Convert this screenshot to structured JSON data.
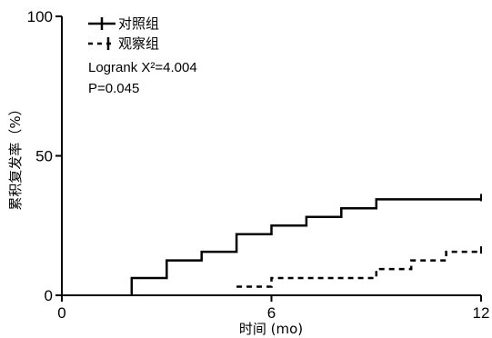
{
  "chart_data": {
    "type": "line",
    "subtype": "kaplan-meier-step",
    "xlabel": "时间 (mo)",
    "ylabel": "累积复发率（%）",
    "xlim": [
      0,
      12
    ],
    "ylim": [
      0,
      100
    ],
    "x_ticks": [
      "0",
      "6",
      "12"
    ],
    "y_ticks": [
      "0",
      "50",
      "100"
    ],
    "grid": false,
    "legend_position": "top-left",
    "annotations": [
      "Logrank X²=4.004",
      "P=0.045"
    ],
    "series": [
      {
        "name": "对照组",
        "line_style": "solid",
        "points": [
          {
            "x": 2,
            "y": 0
          },
          {
            "x": 2,
            "y": 6.2
          },
          {
            "x": 3,
            "y": 6.2
          },
          {
            "x": 3,
            "y": 12.5
          },
          {
            "x": 4,
            "y": 12.5
          },
          {
            "x": 4,
            "y": 15.6
          },
          {
            "x": 5,
            "y": 15.6
          },
          {
            "x": 5,
            "y": 21.9
          },
          {
            "x": 6,
            "y": 21.9
          },
          {
            "x": 6,
            "y": 25
          },
          {
            "x": 7,
            "y": 25
          },
          {
            "x": 7,
            "y": 28.1
          },
          {
            "x": 8,
            "y": 28.1
          },
          {
            "x": 8,
            "y": 31.2
          },
          {
            "x": 9,
            "y": 31.2
          },
          {
            "x": 9,
            "y": 34.4
          },
          {
            "x": 12,
            "y": 34.4
          }
        ]
      },
      {
        "name": "观察组",
        "line_style": "dashed",
        "points": [
          {
            "x": 5,
            "y": 3.1
          },
          {
            "x": 6,
            "y": 3.1
          },
          {
            "x": 6,
            "y": 6.2
          },
          {
            "x": 9,
            "y": 6.2
          },
          {
            "x": 9,
            "y": 9.4
          },
          {
            "x": 10,
            "y": 9.4
          },
          {
            "x": 10,
            "y": 12.5
          },
          {
            "x": 11,
            "y": 12.5
          },
          {
            "x": 11,
            "y": 15.6
          },
          {
            "x": 12,
            "y": 15.6
          }
        ]
      }
    ]
  }
}
